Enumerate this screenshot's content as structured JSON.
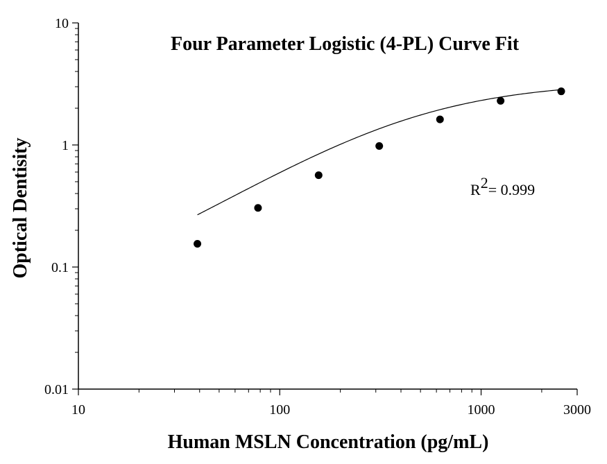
{
  "chart_data": {
    "type": "scatter",
    "title": "Four Parameter Logistic (4-PL) Curve Fit",
    "xlabel": "Human MSLN Concentration (pg/mL)",
    "ylabel": "Optical Dentisity",
    "xscale": "log",
    "yscale": "log",
    "xlim": [
      10,
      3000
    ],
    "ylim": [
      0.01,
      10
    ],
    "x_ticks": [
      {
        "value": 10,
        "label": "10"
      },
      {
        "value": 100,
        "label": "100"
      },
      {
        "value": 1000,
        "label": "1000"
      },
      {
        "value": 3000,
        "label": "3000"
      }
    ],
    "y_ticks": [
      {
        "value": 0.01,
        "label": "0.01"
      },
      {
        "value": 0.1,
        "label": "0.1"
      },
      {
        "value": 1,
        "label": "1"
      },
      {
        "value": 10,
        "label": "10"
      }
    ],
    "grid": false,
    "series": [
      {
        "x": [
          39,
          78,
          156,
          312,
          625,
          1250,
          2500
        ],
        "y": [
          0.155,
          0.305,
          0.565,
          0.98,
          1.62,
          2.3,
          2.75
        ],
        "color": "#000000"
      }
    ],
    "fit_curve": {
      "model": "4-PL",
      "a": 0.035,
      "d": 3.3,
      "c": 450,
      "b": 1.05,
      "x_range": [
        39,
        2500
      ],
      "color": "#000000"
    },
    "annotation": {
      "r_base": "R",
      "r_sup": "2",
      "r_rest": "= 0.999"
    }
  }
}
